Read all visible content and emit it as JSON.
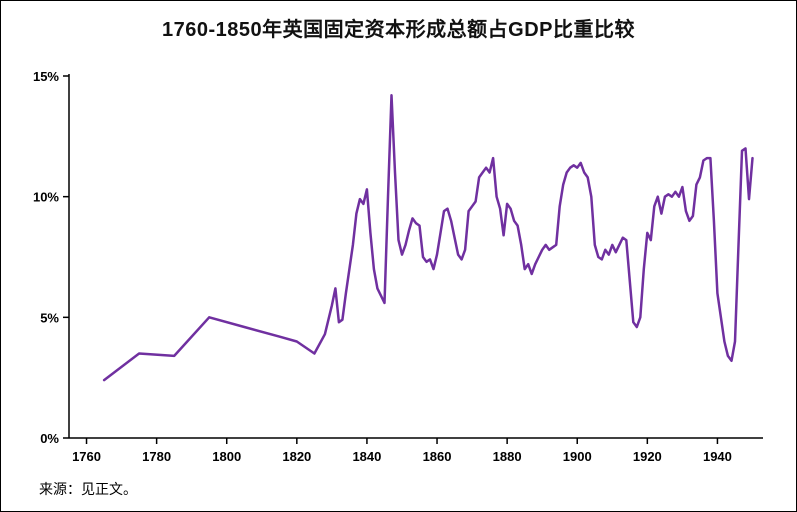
{
  "title": "1760-1850年英国固定资本形成总额占GDP比重比较",
  "source_note": "来源：见正文。",
  "chart_data": {
    "type": "line",
    "title": "1760-1850年英国固定资本形成总额占GDP比重比较",
    "xlabel": "",
    "ylabel": "",
    "xlim": [
      1755,
      1953
    ],
    "ylim": [
      0,
      15
    ],
    "x_ticks": [
      1760,
      1780,
      1800,
      1820,
      1840,
      1860,
      1880,
      1900,
      1920,
      1940
    ],
    "y_ticks": [
      0,
      5,
      10,
      15
    ],
    "y_tick_labels": [
      "0%",
      "5%",
      "10%",
      "15%"
    ],
    "grid": false,
    "legend": "none",
    "line_color": "#7030A0",
    "line_width": 2.5,
    "series": [
      {
        "name": "英国固定资本形成总额占GDP比重",
        "points": [
          [
            1765,
            2.4
          ],
          [
            1775,
            3.5
          ],
          [
            1785,
            3.4
          ],
          [
            1795,
            5.0
          ],
          [
            1805,
            4.6
          ],
          [
            1815,
            4.2
          ],
          [
            1820,
            4.0
          ],
          [
            1825,
            3.5
          ],
          [
            1828,
            4.3
          ],
          [
            1830,
            5.5
          ],
          [
            1831,
            6.2
          ],
          [
            1832,
            4.8
          ],
          [
            1833,
            4.9
          ],
          [
            1834,
            6.0
          ],
          [
            1835,
            7.0
          ],
          [
            1836,
            8.0
          ],
          [
            1837,
            9.3
          ],
          [
            1838,
            9.9
          ],
          [
            1839,
            9.7
          ],
          [
            1840,
            10.3
          ],
          [
            1841,
            8.5
          ],
          [
            1842,
            7.0
          ],
          [
            1843,
            6.2
          ],
          [
            1844,
            5.9
          ],
          [
            1845,
            5.6
          ],
          [
            1846,
            10.0
          ],
          [
            1847,
            14.2
          ],
          [
            1848,
            11.0
          ],
          [
            1849,
            8.2
          ],
          [
            1850,
            7.6
          ],
          [
            1851,
            8.0
          ],
          [
            1852,
            8.6
          ],
          [
            1853,
            9.1
          ],
          [
            1854,
            8.9
          ],
          [
            1855,
            8.8
          ],
          [
            1856,
            7.5
          ],
          [
            1857,
            7.3
          ],
          [
            1858,
            7.4
          ],
          [
            1859,
            7.0
          ],
          [
            1860,
            7.6
          ],
          [
            1861,
            8.5
          ],
          [
            1862,
            9.4
          ],
          [
            1863,
            9.5
          ],
          [
            1864,
            9.0
          ],
          [
            1865,
            8.3
          ],
          [
            1866,
            7.6
          ],
          [
            1867,
            7.4
          ],
          [
            1868,
            7.8
          ],
          [
            1869,
            9.4
          ],
          [
            1870,
            9.6
          ],
          [
            1871,
            9.8
          ],
          [
            1872,
            10.8
          ],
          [
            1873,
            11.0
          ],
          [
            1874,
            11.2
          ],
          [
            1875,
            11.0
          ],
          [
            1876,
            11.6
          ],
          [
            1877,
            10.0
          ],
          [
            1878,
            9.5
          ],
          [
            1879,
            8.4
          ],
          [
            1880,
            9.7
          ],
          [
            1881,
            9.5
          ],
          [
            1882,
            9.0
          ],
          [
            1883,
            8.8
          ],
          [
            1884,
            8.0
          ],
          [
            1885,
            7.0
          ],
          [
            1886,
            7.2
          ],
          [
            1887,
            6.8
          ],
          [
            1888,
            7.2
          ],
          [
            1889,
            7.5
          ],
          [
            1890,
            7.8
          ],
          [
            1891,
            8.0
          ],
          [
            1892,
            7.8
          ],
          [
            1893,
            7.9
          ],
          [
            1894,
            8.0
          ],
          [
            1895,
            9.6
          ],
          [
            1896,
            10.5
          ],
          [
            1897,
            11.0
          ],
          [
            1898,
            11.2
          ],
          [
            1899,
            11.3
          ],
          [
            1900,
            11.2
          ],
          [
            1901,
            11.4
          ],
          [
            1902,
            11.0
          ],
          [
            1903,
            10.8
          ],
          [
            1904,
            10.0
          ],
          [
            1905,
            8.0
          ],
          [
            1906,
            7.5
          ],
          [
            1907,
            7.4
          ],
          [
            1908,
            7.8
          ],
          [
            1909,
            7.6
          ],
          [
            1910,
            8.0
          ],
          [
            1911,
            7.7
          ],
          [
            1912,
            8.0
          ],
          [
            1913,
            8.3
          ],
          [
            1914,
            8.2
          ],
          [
            1915,
            6.5
          ],
          [
            1916,
            4.8
          ],
          [
            1917,
            4.6
          ],
          [
            1918,
            5.0
          ],
          [
            1919,
            7.0
          ],
          [
            1920,
            8.5
          ],
          [
            1921,
            8.2
          ],
          [
            1922,
            9.6
          ],
          [
            1923,
            10.0
          ],
          [
            1924,
            9.3
          ],
          [
            1925,
            10.0
          ],
          [
            1926,
            10.1
          ],
          [
            1927,
            10.0
          ],
          [
            1928,
            10.2
          ],
          [
            1929,
            10.0
          ],
          [
            1930,
            10.4
          ],
          [
            1931,
            9.4
          ],
          [
            1932,
            9.0
          ],
          [
            1933,
            9.2
          ],
          [
            1934,
            10.5
          ],
          [
            1935,
            10.8
          ],
          [
            1936,
            11.5
          ],
          [
            1937,
            11.6
          ],
          [
            1938,
            11.6
          ],
          [
            1939,
            9.0
          ],
          [
            1940,
            6.0
          ],
          [
            1941,
            5.0
          ],
          [
            1942,
            4.0
          ],
          [
            1943,
            3.4
          ],
          [
            1944,
            3.2
          ],
          [
            1945,
            4.0
          ],
          [
            1946,
            8.0
          ],
          [
            1947,
            11.9
          ],
          [
            1948,
            12.0
          ],
          [
            1949,
            9.9
          ],
          [
            1950,
            11.6
          ]
        ]
      }
    ]
  }
}
